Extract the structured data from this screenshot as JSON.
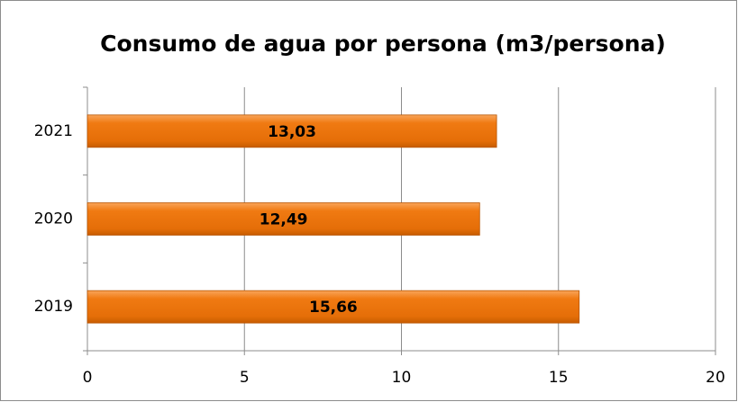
{
  "chart_data": {
    "type": "bar",
    "orientation": "horizontal",
    "title": "Consumo de agua por persona (m3/persona)",
    "categories": [
      "2019",
      "2020",
      "2021"
    ],
    "values": [
      15.66,
      12.49,
      13.03
    ],
    "value_labels": [
      "15,66",
      "12,49",
      "13,03"
    ],
    "color": "#f07a12",
    "xlim": [
      0,
      20
    ],
    "xticks": [
      0,
      5,
      10,
      15,
      20
    ],
    "grid": true
  }
}
